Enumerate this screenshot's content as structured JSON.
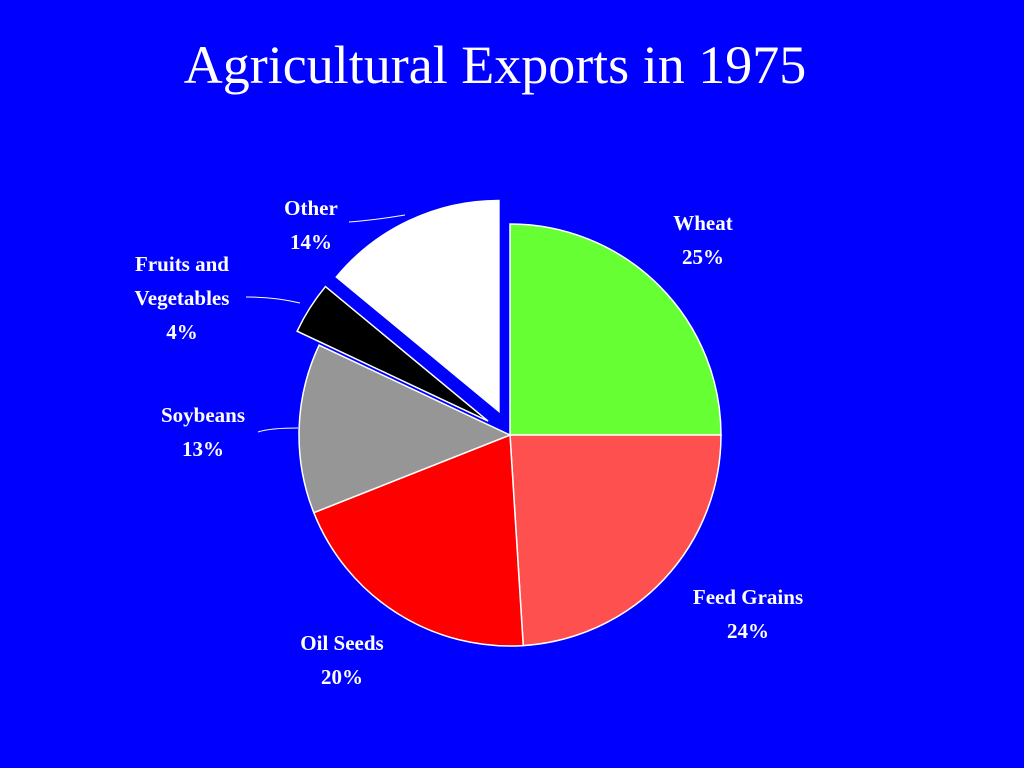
{
  "chart_data": {
    "type": "pie",
    "title": "Agricultural Exports in 1975",
    "categories": [
      "Wheat",
      "Feed Grains",
      "Oil Seeds",
      "Soybeans",
      "Fruits and Vegetables",
      "Other"
    ],
    "values": [
      25,
      24,
      20,
      13,
      4,
      14
    ],
    "value_labels": [
      "25%",
      "24%",
      "20%",
      "13%",
      "4%",
      "14%"
    ],
    "colors": [
      "#66ff33",
      "#ff5050",
      "#ff0000",
      "#969696",
      "#000000",
      "#ffffff"
    ]
  }
}
